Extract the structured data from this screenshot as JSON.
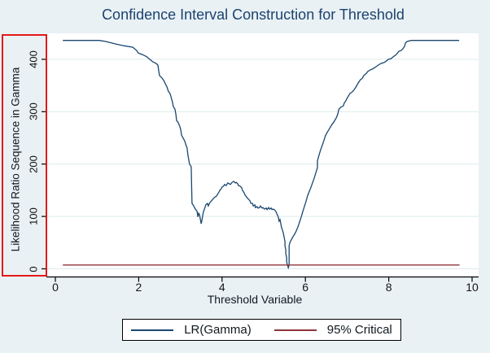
{
  "chart_data": {
    "type": "line",
    "title": "Confidence Interval Construction for Threshold",
    "xlabel": "Threshold Variable",
    "ylabel": "Likelihood Ratio Sequence in Gamma",
    "x_ticks": [
      0,
      2,
      4,
      6,
      8,
      10
    ],
    "y_ticks": [
      0,
      100,
      200,
      300,
      400
    ],
    "xlim": [
      -0.2,
      10.2
    ],
    "ylim": [
      -16,
      451
    ],
    "grid": "horizontal",
    "gridline_color": "#dfeaec",
    "legend_position": "bottom-center",
    "series": [
      {
        "name": "LR(Gamma)",
        "color": "#1a476f",
        "points": [
          [
            0.18,
            436
          ],
          [
            0.63,
            436
          ],
          [
            1.05,
            436
          ],
          [
            1.21,
            434
          ],
          [
            1.46,
            429
          ],
          [
            1.64,
            426
          ],
          [
            1.86,
            423
          ],
          [
            1.95,
            417
          ],
          [
            1.99,
            412
          ],
          [
            2.09,
            409
          ],
          [
            2.19,
            405
          ],
          [
            2.25,
            401
          ],
          [
            2.34,
            395
          ],
          [
            2.42,
            392
          ],
          [
            2.46,
            389
          ],
          [
            2.48,
            378
          ],
          [
            2.5,
            369
          ],
          [
            2.56,
            364
          ],
          [
            2.6,
            360
          ],
          [
            2.64,
            353
          ],
          [
            2.68,
            347
          ],
          [
            2.71,
            339
          ],
          [
            2.75,
            335
          ],
          [
            2.77,
            330
          ],
          [
            2.81,
            318
          ],
          [
            2.83,
            310
          ],
          [
            2.87,
            305
          ],
          [
            2.89,
            296
          ],
          [
            2.91,
            283
          ],
          [
            2.95,
            279
          ],
          [
            2.99,
            271
          ],
          [
            3.01,
            265
          ],
          [
            3.03,
            255
          ],
          [
            3.07,
            249
          ],
          [
            3.11,
            243
          ],
          [
            3.13,
            237
          ],
          [
            3.16,
            231
          ],
          [
            3.18,
            218
          ],
          [
            3.2,
            209
          ],
          [
            3.22,
            200
          ],
          [
            3.26,
            195
          ],
          [
            3.28,
            125
          ],
          [
            3.32,
            120
          ],
          [
            3.36,
            114
          ],
          [
            3.4,
            110
          ],
          [
            3.42,
            99
          ],
          [
            3.44,
            106
          ],
          [
            3.46,
            103
          ],
          [
            3.48,
            94
          ],
          [
            3.5,
            86
          ],
          [
            3.52,
            94
          ],
          [
            3.55,
            108
          ],
          [
            3.59,
            117
          ],
          [
            3.61,
            122
          ],
          [
            3.65,
            125
          ],
          [
            3.67,
            120
          ],
          [
            3.71,
            127
          ],
          [
            3.75,
            130
          ],
          [
            3.79,
            134
          ],
          [
            3.83,
            137
          ],
          [
            3.87,
            139
          ],
          [
            3.89,
            142
          ],
          [
            3.93,
            147
          ],
          [
            3.95,
            150
          ],
          [
            3.98,
            153
          ],
          [
            4.0,
            156
          ],
          [
            4.04,
            158
          ],
          [
            4.06,
            161
          ],
          [
            4.1,
            159
          ],
          [
            4.14,
            164
          ],
          [
            4.18,
            162
          ],
          [
            4.2,
            161
          ],
          [
            4.24,
            165
          ],
          [
            4.28,
            167
          ],
          [
            4.32,
            164
          ],
          [
            4.34,
            165
          ],
          [
            4.38,
            162
          ],
          [
            4.39,
            159
          ],
          [
            4.43,
            158
          ],
          [
            4.47,
            155
          ],
          [
            4.49,
            150
          ],
          [
            4.53,
            145
          ],
          [
            4.55,
            141
          ],
          [
            4.59,
            137
          ],
          [
            4.63,
            133
          ],
          [
            4.67,
            130
          ],
          [
            4.69,
            125
          ],
          [
            4.73,
            125
          ],
          [
            4.75,
            120
          ],
          [
            4.79,
            122
          ],
          [
            4.8,
            117
          ],
          [
            4.84,
            119
          ],
          [
            4.86,
            116
          ],
          [
            4.9,
            117
          ],
          [
            4.92,
            120
          ],
          [
            4.96,
            116
          ],
          [
            4.98,
            117
          ],
          [
            5.02,
            114
          ],
          [
            5.06,
            116
          ],
          [
            5.08,
            113
          ],
          [
            5.12,
            117
          ],
          [
            5.14,
            114
          ],
          [
            5.18,
            116
          ],
          [
            5.2,
            113
          ],
          [
            5.23,
            114
          ],
          [
            5.25,
            113
          ],
          [
            5.29,
            110
          ],
          [
            5.31,
            106
          ],
          [
            5.35,
            99
          ],
          [
            5.37,
            91
          ],
          [
            5.39,
            94
          ],
          [
            5.41,
            86
          ],
          [
            5.43,
            78
          ],
          [
            5.45,
            74
          ],
          [
            5.47,
            68
          ],
          [
            5.49,
            60
          ],
          [
            5.51,
            52
          ],
          [
            5.51,
            44
          ],
          [
            5.53,
            37
          ],
          [
            5.53,
            29
          ],
          [
            5.55,
            21
          ],
          [
            5.55,
            13
          ],
          [
            5.57,
            7
          ],
          [
            5.59,
            2
          ],
          [
            5.61,
            7
          ],
          [
            5.61,
            44
          ],
          [
            5.63,
            51
          ],
          [
            5.66,
            55
          ],
          [
            5.7,
            61
          ],
          [
            5.74,
            66
          ],
          [
            5.78,
            72
          ],
          [
            5.82,
            80
          ],
          [
            5.86,
            89
          ],
          [
            5.9,
            99
          ],
          [
            5.94,
            110
          ],
          [
            5.98,
            120
          ],
          [
            6.02,
            130
          ],
          [
            6.05,
            139
          ],
          [
            6.09,
            147
          ],
          [
            6.13,
            155
          ],
          [
            6.17,
            164
          ],
          [
            6.21,
            173
          ],
          [
            6.25,
            183
          ],
          [
            6.29,
            193
          ],
          [
            6.29,
            206
          ],
          [
            6.33,
            218
          ],
          [
            6.37,
            228
          ],
          [
            6.41,
            237
          ],
          [
            6.45,
            246
          ],
          [
            6.48,
            254
          ],
          [
            6.52,
            260
          ],
          [
            6.58,
            268
          ],
          [
            6.64,
            276
          ],
          [
            6.68,
            280
          ],
          [
            6.74,
            288
          ],
          [
            6.78,
            296
          ],
          [
            6.8,
            304
          ],
          [
            6.84,
            308
          ],
          [
            6.91,
            311
          ],
          [
            6.93,
            316
          ],
          [
            6.97,
            321
          ],
          [
            7.01,
            327
          ],
          [
            7.07,
            335
          ],
          [
            7.13,
            338
          ],
          [
            7.17,
            342
          ],
          [
            7.21,
            347
          ],
          [
            7.27,
            355
          ],
          [
            7.32,
            361
          ],
          [
            7.36,
            363
          ],
          [
            7.4,
            369
          ],
          [
            7.46,
            373
          ],
          [
            7.5,
            377
          ],
          [
            7.56,
            380
          ],
          [
            7.6,
            381
          ],
          [
            7.66,
            384
          ],
          [
            7.7,
            386
          ],
          [
            7.75,
            389
          ],
          [
            7.81,
            392
          ],
          [
            7.89,
            394
          ],
          [
            7.95,
            397
          ],
          [
            7.99,
            400
          ],
          [
            8.05,
            401
          ],
          [
            8.11,
            405
          ],
          [
            8.18,
            409
          ],
          [
            8.24,
            415
          ],
          [
            8.3,
            417
          ],
          [
            8.34,
            420
          ],
          [
            8.38,
            425
          ],
          [
            8.4,
            431
          ],
          [
            8.44,
            434
          ],
          [
            8.54,
            436
          ],
          [
            9.69,
            436
          ]
        ]
      },
      {
        "name": "95% Critical",
        "color": "#90353b",
        "points": [
          [
            0.18,
            7.35
          ],
          [
            9.7,
            7.35
          ]
        ]
      }
    ]
  },
  "annotations": {
    "highlight_box": {
      "description": "red rectangle highlighting the y-axis title and tick labels",
      "color": "#e60000"
    }
  },
  "colors": {
    "background": "#eaf1f4",
    "plot_background": "#ffffff",
    "title_text": "#1b4370",
    "axis_text": "#141414"
  }
}
